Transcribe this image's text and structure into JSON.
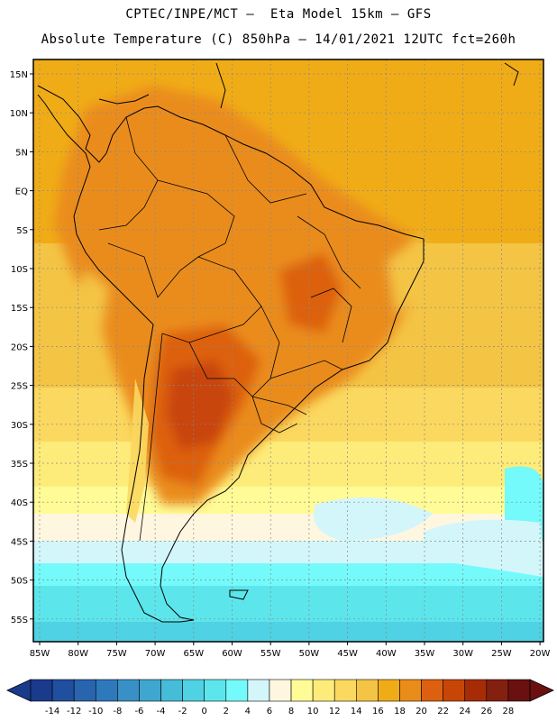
{
  "header": {
    "line1": "CPTEC/INPE/MCT –  Eta Model 15km – GFS",
    "line2": "Absolute Temperature (C) 850hPa – 14/01/2021 12UTC fct=260h"
  },
  "map": {
    "lat_labels": [
      "15N",
      "10N",
      "5N",
      "EQ",
      "5S",
      "10S",
      "15S",
      "20S",
      "25S",
      "30S",
      "35S",
      "40S",
      "45S",
      "50S",
      "55S"
    ],
    "lon_labels": [
      "85W",
      "80W",
      "75W",
      "70W",
      "65W",
      "60W",
      "55W",
      "50W",
      "45W",
      "40W",
      "35W",
      "30W",
      "25W",
      "20W"
    ]
  },
  "colorbar": {
    "ticks": [
      "-14",
      "-12",
      "-10",
      "-8",
      "-6",
      "-4",
      "-2",
      "0",
      "2",
      "4",
      "6",
      "8",
      "10",
      "12",
      "14",
      "16",
      "18",
      "20",
      "22",
      "24",
      "26",
      "28"
    ],
    "colors": [
      "#1a3a8c",
      "#1f4f9e",
      "#2964ae",
      "#2e79bc",
      "#3890c6",
      "#3fa6cf",
      "#45bcd8",
      "#4fd2e3",
      "#5ce6ec",
      "#74fafa",
      "#d3f6fb",
      "#fff6e0",
      "#fffb96",
      "#fdec7a",
      "#fbd860",
      "#f4c445",
      "#f0ac17",
      "#ea8c1a",
      "#dd6010",
      "#c84508",
      "#a62c06",
      "#842010",
      "#6a1010"
    ],
    "units": "degrees C"
  }
}
